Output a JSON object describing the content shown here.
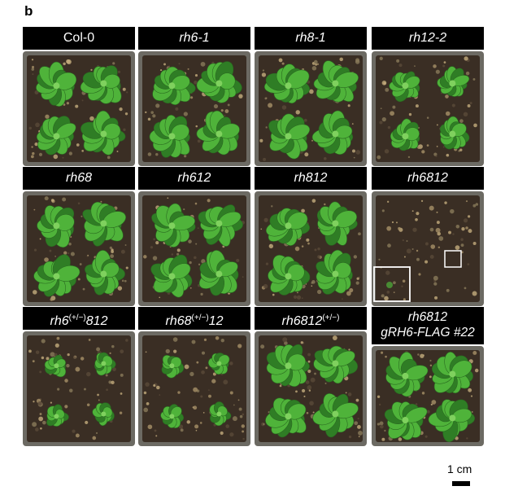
{
  "panel_letter": "b",
  "genotypes": [
    {
      "label": "Col-0",
      "italic": false,
      "condition": "healthy-large"
    },
    {
      "label": "rh6-1",
      "italic": true,
      "condition": "healthy-large"
    },
    {
      "label": "rh8-1",
      "italic": true,
      "condition": "healthy-large"
    },
    {
      "label": "rh12-2",
      "italic": true,
      "condition": "healthy-small"
    },
    {
      "label": "rh68",
      "italic": true,
      "condition": "healthy-large"
    },
    {
      "label": "rh612",
      "italic": true,
      "condition": "healthy-large"
    },
    {
      "label": "rh812",
      "italic": true,
      "condition": "healthy-large"
    },
    {
      "label": "rh6812",
      "italic": true,
      "condition": "no-seedlings"
    },
    {
      "label_base": "rh6",
      "label_sup": "(+/−)",
      "label_tail": "812",
      "italic": true,
      "condition": "dwarf"
    },
    {
      "label_base": "rh68",
      "label_sup": "(+/−)",
      "label_tail": "12",
      "italic": true,
      "condition": "dwarf"
    },
    {
      "label_base": "rh6812",
      "label_sup": "(+/−)",
      "label_tail": "",
      "italic": true,
      "condition": "healthy-large"
    },
    {
      "label_line1": "rh6812",
      "label_line2": "gRH6-FLAG #22",
      "italic": true,
      "condition": "healthy-large"
    }
  ],
  "scale_bar": {
    "label": "1 cm"
  },
  "colors": {
    "leaf": "#4fb33a",
    "leaf_dark": "#2f7d25",
    "soil": "#3a2e24",
    "pot_rim": "#6c6a63",
    "label_bg": "#000000"
  }
}
